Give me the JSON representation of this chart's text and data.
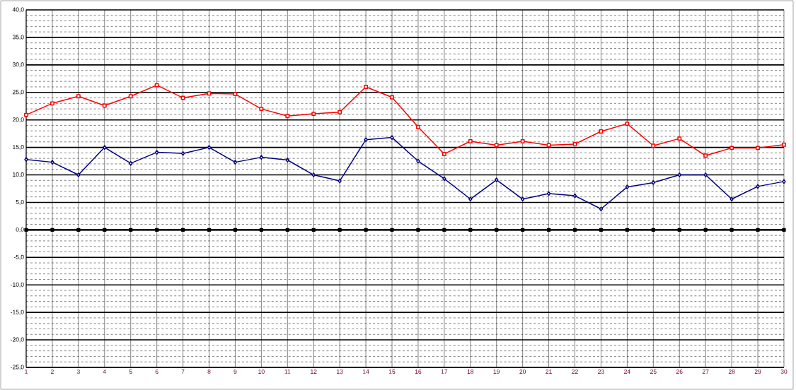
{
  "chart_data": {
    "type": "line",
    "categories": [
      "1",
      "2",
      "3",
      "4",
      "5",
      "6",
      "7",
      "8",
      "9",
      "10",
      "11",
      "12",
      "13",
      "14",
      "15",
      "16",
      "17",
      "18",
      "19",
      "20",
      "21",
      "22",
      "23",
      "24",
      "25",
      "26",
      "27",
      "28",
      "29",
      "30"
    ],
    "series": [
      {
        "color": "#ff0000",
        "marker": "square",
        "values": [
          20.9,
          23.0,
          24.3,
          22.6,
          24.3,
          26.3,
          24.0,
          24.8,
          24.7,
          22.0,
          20.7,
          21.1,
          21.4,
          26.0,
          24.1,
          18.7,
          13.8,
          16.1,
          15.4,
          16.1,
          15.4,
          15.6,
          17.9,
          19.3,
          15.3,
          16.6,
          13.5,
          14.9,
          14.9,
          15.5
        ]
      },
      {
        "color": "#000080",
        "marker": "diamond",
        "values": [
          12.8,
          12.3,
          10.0,
          15.0,
          12.1,
          14.1,
          13.9,
          15.0,
          12.3,
          13.2,
          12.7,
          10.0,
          8.9,
          16.4,
          16.8,
          12.5,
          9.3,
          5.6,
          9.1,
          5.6,
          6.6,
          6.2,
          3.8,
          7.8,
          8.6,
          10.0,
          10.0,
          5.6,
          7.9,
          8.8
        ]
      },
      {
        "color": "#000000",
        "marker": "square",
        "values": [
          0,
          0,
          0,
          0,
          0,
          0,
          0,
          0,
          0,
          0,
          0,
          0,
          0,
          0,
          0,
          0,
          0,
          0,
          0,
          0,
          0,
          0,
          0,
          0,
          0,
          0,
          0,
          0,
          0,
          0
        ]
      }
    ],
    "ylim": [
      -25,
      40
    ],
    "yticks": [
      {
        "value": -25,
        "label": "-25,0"
      },
      {
        "value": -20,
        "label": "-20,0"
      },
      {
        "value": -15,
        "label": "-15,0"
      },
      {
        "value": -10,
        "label": "-10,0"
      },
      {
        "value": -5,
        "label": "-5,0"
      },
      {
        "value": 0,
        "label": "0,0"
      },
      {
        "value": 5,
        "label": "5,0"
      },
      {
        "value": 10,
        "label": "10,0"
      },
      {
        "value": 15,
        "label": "15,0"
      },
      {
        "value": 20,
        "label": "20,0"
      },
      {
        "value": 25,
        "label": "25,0"
      },
      {
        "value": 30,
        "label": "30,0"
      },
      {
        "value": 35,
        "label": "35,0"
      },
      {
        "value": 40,
        "label": "40,0"
      }
    ],
    "grid": true
  }
}
